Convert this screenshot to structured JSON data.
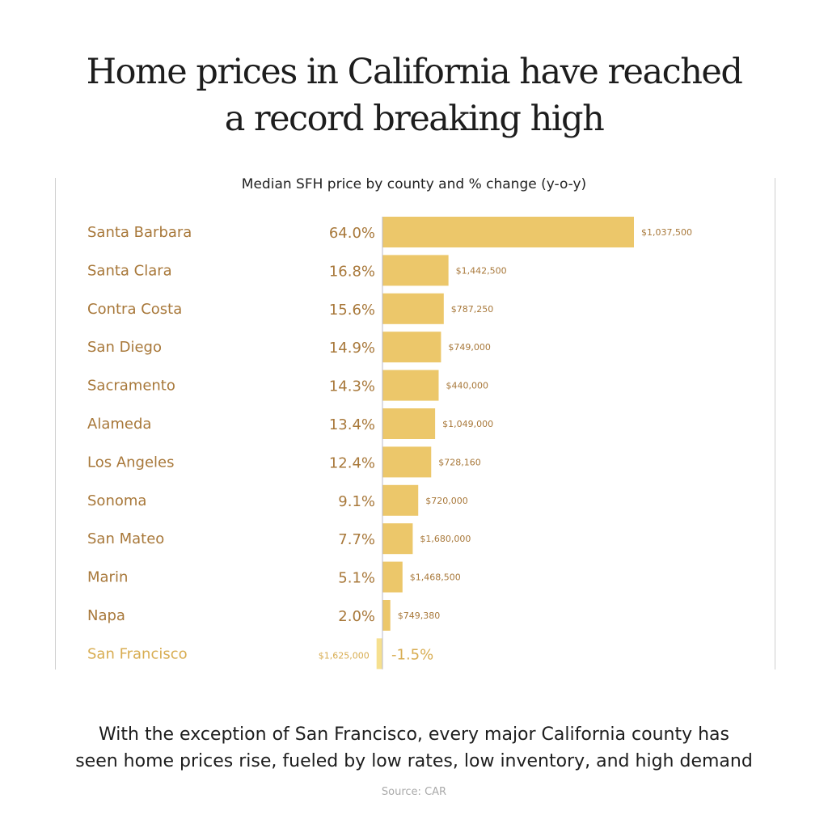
{
  "title_line1": "Home prices in California have reached",
  "title_line2": "a record breaking high",
  "footer_line1": "With the exception of San Francisco, every major California county has",
  "footer_line2": "seen home prices rise, fueled by low rates, low inventory, and high demand",
  "source": "Source: CAR",
  "colors": {
    "bar": "#ecc76a",
    "bar_negative": "#f6e08f",
    "label": "#a8783a",
    "label_negative": "#d8ad52",
    "axis": "#b8b8c8"
  },
  "chart_data": {
    "type": "bar",
    "orientation": "horizontal",
    "title": "Median SFH price by county and % change (y-o-y)",
    "categories": [
      "Santa Barbara",
      "Santa Clara",
      "Contra Costa",
      "San Diego",
      "Sacramento",
      "Alameda",
      "Los Angeles",
      "Sonoma",
      "San Mateo",
      "Marin",
      "Napa",
      "San Francisco"
    ],
    "values": [
      64.0,
      16.8,
      15.6,
      14.9,
      14.3,
      13.4,
      12.4,
      9.1,
      7.7,
      5.1,
      2.0,
      -1.5
    ],
    "value_labels": [
      "64.0%",
      "16.8%",
      "15.6%",
      "14.9%",
      "14.3%",
      "13.4%",
      "12.4%",
      "9.1%",
      "7.7%",
      "5.1%",
      "2.0%",
      "-1.5%"
    ],
    "median_prices": [
      "$1,037,500",
      "$1,442,500",
      "$787,250",
      "$749,000",
      "$440,000",
      "$1,049,000",
      "$728,160",
      "$720,000",
      "$1,680,000",
      "$1,468,500",
      "$749,380",
      "$1,625,000"
    ],
    "grid": false
  }
}
